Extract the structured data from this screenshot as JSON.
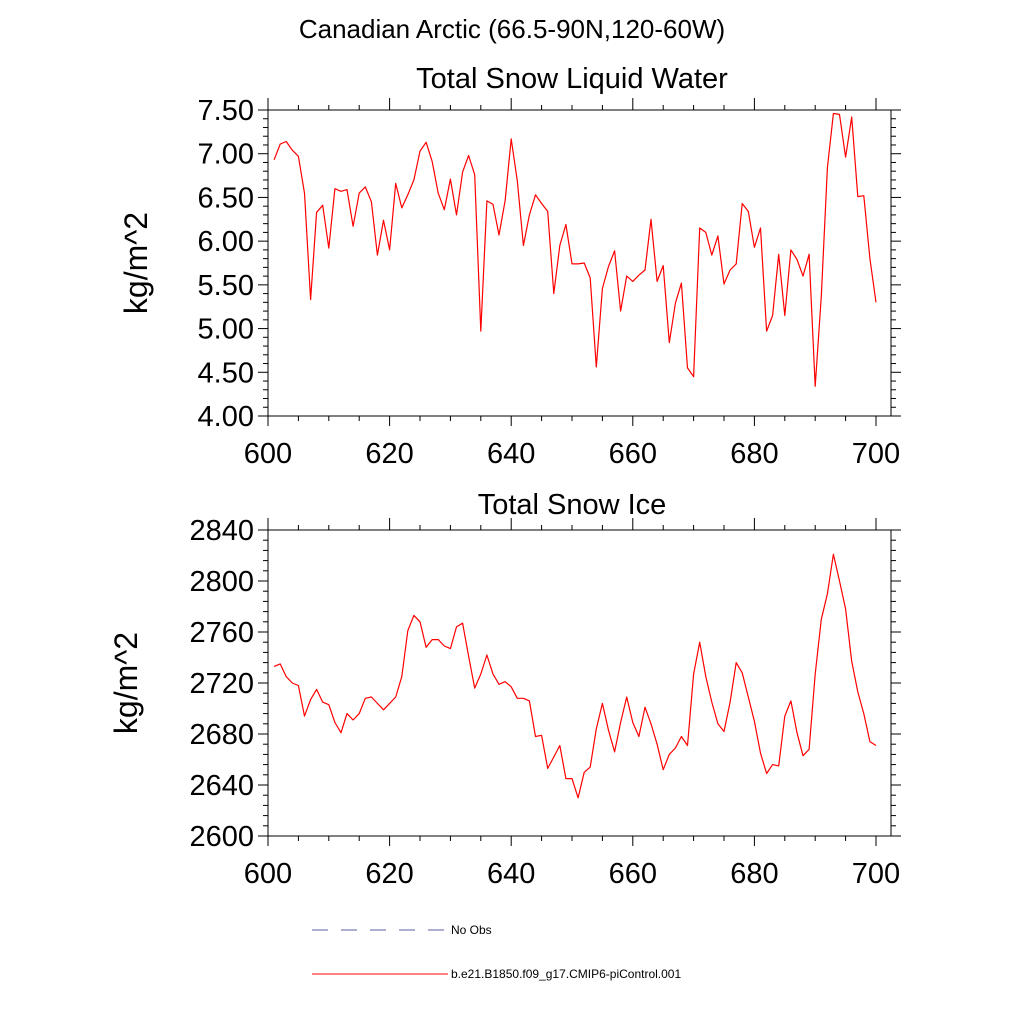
{
  "figure": {
    "main_title": "Canadian Arctic (66.5-90N,120-60W)"
  },
  "colors": {
    "series": "#ff0000",
    "obs": "#5b5fa6",
    "axis": "#000000"
  },
  "legend": {
    "entries": [
      {
        "label": "No Obs",
        "style": "dashed",
        "color": "#5b5fa6"
      },
      {
        "label": "b.e21.B1850.f09_g17.CMIP6-piControl.001",
        "style": "solid",
        "color": "#ff0000"
      }
    ]
  },
  "chart_data": [
    {
      "type": "line",
      "title": "Total Snow Liquid Water",
      "xlabel": "",
      "ylabel": "kg/m^2",
      "xlim": [
        601,
        700
      ],
      "ylim": [
        4.0,
        7.5
      ],
      "xticks": [
        600,
        620,
        640,
        660,
        680,
        700
      ],
      "xtick_labels": [
        "600",
        "620",
        "640",
        "660",
        "680",
        "700"
      ],
      "yticks": [
        4.0,
        4.5,
        5.0,
        5.5,
        6.0,
        6.5,
        7.0,
        7.5
      ],
      "ytick_labels": [
        "4.00",
        "4.50",
        "5.00",
        "5.50",
        "6.00",
        "6.50",
        "7.00",
        "7.50"
      ],
      "grid": false,
      "series": [
        {
          "name": "b.e21.B1850.f09_g17.CMIP6-piControl.001",
          "x": [
            601,
            602,
            603,
            604,
            605,
            606,
            607,
            608,
            609,
            610,
            611,
            612,
            613,
            614,
            615,
            616,
            617,
            618,
            619,
            620,
            621,
            622,
            623,
            624,
            625,
            626,
            627,
            628,
            629,
            630,
            631,
            632,
            633,
            634,
            635,
            636,
            637,
            638,
            639,
            640,
            641,
            642,
            643,
            644,
            645,
            646,
            647,
            648,
            649,
            650,
            651,
            652,
            653,
            654,
            655,
            656,
            657,
            658,
            659,
            660,
            661,
            662,
            663,
            664,
            665,
            666,
            667,
            668,
            669,
            670,
            671,
            672,
            673,
            674,
            675,
            676,
            677,
            678,
            679,
            680,
            681,
            682,
            683,
            684,
            685,
            686,
            687,
            688,
            689,
            690,
            691,
            692,
            693,
            694,
            695,
            696,
            697,
            698,
            699,
            700
          ],
          "y": [
            6.93,
            7.11,
            7.14,
            7.04,
            6.97,
            6.55,
            5.33,
            6.33,
            6.41,
            5.92,
            6.6,
            6.57,
            6.59,
            6.17,
            6.55,
            6.62,
            6.45,
            5.84,
            6.24,
            5.9,
            6.66,
            6.38,
            6.53,
            6.7,
            7.03,
            7.13,
            6.91,
            6.55,
            6.36,
            6.71,
            6.3,
            6.79,
            6.98,
            6.76,
            4.97,
            6.46,
            6.42,
            6.07,
            6.46,
            7.17,
            6.69,
            5.95,
            6.3,
            6.53,
            6.43,
            6.34,
            5.4,
            5.95,
            6.19,
            5.74,
            5.74,
            5.75,
            5.58,
            4.56,
            5.46,
            5.71,
            5.89,
            5.2,
            5.6,
            5.54,
            5.61,
            5.67,
            6.25,
            5.54,
            5.72,
            4.84,
            5.29,
            5.52,
            4.55,
            4.45,
            6.15,
            6.1,
            5.84,
            6.06,
            5.51,
            5.67,
            5.74,
            6.43,
            6.34,
            5.93,
            6.15,
            4.97,
            5.15,
            5.85,
            5.15,
            5.9,
            5.79,
            5.6,
            5.85,
            4.34,
            5.37,
            6.84,
            7.46,
            7.45,
            6.96,
            7.42,
            6.51,
            6.52,
            5.8,
            5.3
          ]
        }
      ]
    },
    {
      "type": "line",
      "title": "Total Snow Ice",
      "xlabel": "",
      "ylabel": "kg/m^2",
      "xlim": [
        601,
        700
      ],
      "ylim": [
        2600,
        2840
      ],
      "xticks": [
        600,
        620,
        640,
        660,
        680,
        700
      ],
      "xtick_labels": [
        "600",
        "620",
        "640",
        "660",
        "680",
        "700"
      ],
      "yticks": [
        2600,
        2640,
        2680,
        2720,
        2760,
        2800,
        2840
      ],
      "ytick_labels": [
        "2600",
        "2640",
        "2680",
        "2720",
        "2760",
        "2800",
        "2840"
      ],
      "grid": false,
      "series": [
        {
          "name": "b.e21.B1850.f09_g17.CMIP6-piControl.001",
          "x": [
            601,
            602,
            603,
            604,
            605,
            606,
            607,
            608,
            609,
            610,
            611,
            612,
            613,
            614,
            615,
            616,
            617,
            618,
            619,
            620,
            621,
            622,
            623,
            624,
            625,
            626,
            627,
            628,
            629,
            630,
            631,
            632,
            633,
            634,
            635,
            636,
            637,
            638,
            639,
            640,
            641,
            642,
            643,
            644,
            645,
            646,
            647,
            648,
            649,
            650,
            651,
            652,
            653,
            654,
            655,
            656,
            657,
            658,
            659,
            660,
            661,
            662,
            663,
            664,
            665,
            666,
            667,
            668,
            669,
            670,
            671,
            672,
            673,
            674,
            675,
            676,
            677,
            678,
            679,
            680,
            681,
            682,
            683,
            684,
            685,
            686,
            687,
            688,
            689,
            690,
            691,
            692,
            693,
            694,
            695,
            696,
            697,
            698,
            699,
            700
          ],
          "y": [
            2733,
            2735,
            2725,
            2720,
            2718,
            2694,
            2707,
            2715,
            2705,
            2703,
            2689,
            2681,
            2696,
            2691,
            2696,
            2708,
            2709,
            2704,
            2699,
            2704,
            2709,
            2725,
            2761,
            2773,
            2768,
            2748,
            2754,
            2754,
            2749,
            2747,
            2764,
            2767,
            2741,
            2716,
            2727,
            2742,
            2727,
            2719,
            2721,
            2717,
            2708,
            2708,
            2706,
            2678,
            2679,
            2653,
            2662,
            2671,
            2645,
            2645,
            2630,
            2650,
            2654,
            2684,
            2704,
            2683,
            2666,
            2689,
            2709,
            2689,
            2678,
            2701,
            2688,
            2672,
            2652,
            2664,
            2669,
            2678,
            2671,
            2727,
            2752,
            2725,
            2705,
            2688,
            2682,
            2705,
            2736,
            2728,
            2709,
            2690,
            2665,
            2649,
            2656,
            2655,
            2694,
            2706,
            2681,
            2663,
            2668,
            2727,
            2770,
            2790,
            2821,
            2800,
            2778,
            2737,
            2713,
            2696,
            2674,
            2671
          ]
        }
      ]
    }
  ]
}
